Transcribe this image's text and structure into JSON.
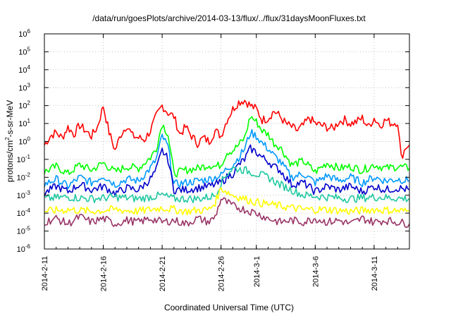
{
  "chart_data": {
    "type": "line",
    "title": "/data/run/goesPlots/archive/2014-03-13/flux/../flux/31daysMoonFluxes.txt",
    "xlabel": "Coordinated Universal Time (UTC)",
    "ylabel": {
      "base": "protons/cm",
      "sup": "2",
      "rest": "-s-sr-MeV"
    },
    "y_scale": "log",
    "ylim_exponent": [
      -6,
      6
    ],
    "y_ticks": [
      {
        "base": "10",
        "exp": "-6"
      },
      {
        "base": "10",
        "exp": "-5"
      },
      {
        "base": "10",
        "exp": "-4"
      },
      {
        "base": "10",
        "exp": "-3"
      },
      {
        "base": "10",
        "exp": "-2"
      },
      {
        "base": "10",
        "exp": "-1"
      },
      {
        "base": "10",
        "exp": "0"
      },
      {
        "base": "10",
        "exp": "1"
      },
      {
        "base": "10",
        "exp": "2"
      },
      {
        "base": "10",
        "exp": "3"
      },
      {
        "base": "10",
        "exp": "4"
      },
      {
        "base": "10",
        "exp": "5"
      },
      {
        "base": "10",
        "exp": "6"
      }
    ],
    "xlim_days": [
      0,
      31
    ],
    "x_ticks": [
      {
        "day": 0,
        "label": "2014-2-11"
      },
      {
        "day": 5,
        "label": "2014-2-16"
      },
      {
        "day": 10,
        "label": "2014-2-21"
      },
      {
        "day": 15,
        "label": "2014-2-26"
      },
      {
        "day": 18,
        "label": "2014-3-1"
      },
      {
        "day": 23,
        "label": "2014-3-6"
      },
      {
        "day": 28,
        "label": "2014-3-11"
      }
    ],
    "grid": true,
    "series": [
      {
        "color": "#ff0000",
        "log_values": [
          [
            0,
            -0.2
          ],
          [
            0.5,
            0.3
          ],
          [
            1,
            0.5
          ],
          [
            1.5,
            0.2
          ],
          [
            2,
            0.8
          ],
          [
            2.5,
            0.4
          ],
          [
            3,
            0.9
          ],
          [
            3.5,
            0.6
          ],
          [
            4,
            0.3
          ],
          [
            4.5,
            0.8
          ],
          [
            5,
            2.0
          ],
          [
            5.5,
            0.5
          ],
          [
            6,
            -0.5
          ],
          [
            6.5,
            0.4
          ],
          [
            7,
            0.9
          ],
          [
            7.5,
            0.3
          ],
          [
            8,
            0.2
          ],
          [
            8.5,
            0.1
          ],
          [
            9,
            0.6
          ],
          [
            9.5,
            1.4
          ],
          [
            10,
            2.0
          ],
          [
            10.5,
            1.6
          ],
          [
            11,
            1.4
          ],
          [
            11.5,
            0.4
          ],
          [
            12,
            0.8
          ],
          [
            12.5,
            0.3
          ],
          [
            13,
            -0.1
          ],
          [
            13.5,
            0.2
          ],
          [
            14,
            0.0
          ],
          [
            14.5,
            0.6
          ],
          [
            15,
            0.3
          ],
          [
            15.5,
            1.2
          ],
          [
            16,
            1.8
          ],
          [
            16.5,
            2.2
          ],
          [
            17,
            2.3
          ],
          [
            17.5,
            2.0
          ],
          [
            18,
            1.8
          ],
          [
            18.5,
            1.2
          ],
          [
            19,
            1.3
          ],
          [
            19.5,
            1.7
          ],
          [
            20,
            1.4
          ],
          [
            20.5,
            1.0
          ],
          [
            21,
            0.8
          ],
          [
            21.5,
            0.6
          ],
          [
            22,
            0.9
          ],
          [
            22.5,
            1.3
          ],
          [
            23,
            1.0
          ],
          [
            23.5,
            0.9
          ],
          [
            24,
            0.8
          ],
          [
            24.5,
            0.7
          ],
          [
            25,
            1.1
          ],
          [
            25.5,
            1.2
          ],
          [
            26,
            1.0
          ],
          [
            26.5,
            1.1
          ],
          [
            27,
            1.3
          ],
          [
            27.5,
            0.8
          ],
          [
            28,
            1.3
          ],
          [
            28.5,
            0.9
          ],
          [
            29,
            1.2
          ],
          [
            29.5,
            1.0
          ],
          [
            30,
            1.1
          ],
          [
            30.3,
            -0.9
          ],
          [
            30.7,
            -0.3
          ],
          [
            31,
            -0.2
          ]
        ]
      },
      {
        "color": "#00ff00",
        "log_values": [
          [
            0,
            -1.7
          ],
          [
            1,
            -1.4
          ],
          [
            2,
            -1.8
          ],
          [
            3,
            -1.3
          ],
          [
            4,
            -1.6
          ],
          [
            5,
            -1.2
          ],
          [
            6,
            -1.7
          ],
          [
            7,
            -1.4
          ],
          [
            8,
            -1.5
          ],
          [
            9,
            -0.9
          ],
          [
            9.5,
            -0.4
          ],
          [
            10,
            1.0
          ],
          [
            10.5,
            0.4
          ],
          [
            11,
            -1.8
          ],
          [
            12,
            -1.6
          ],
          [
            13,
            -1.5
          ],
          [
            14,
            -1.3
          ],
          [
            14.5,
            -1.4
          ],
          [
            15,
            -1.3
          ],
          [
            15.5,
            -0.6
          ],
          [
            16,
            -0.5
          ],
          [
            16.5,
            -0.2
          ],
          [
            17,
            0.2
          ],
          [
            17.5,
            1.4
          ],
          [
            18,
            1.1
          ],
          [
            18.5,
            0.6
          ],
          [
            19,
            0.4
          ],
          [
            19.5,
            -0.1
          ],
          [
            20,
            -0.3
          ],
          [
            21,
            -1.3
          ],
          [
            22,
            -1.1
          ],
          [
            23,
            -1.7
          ],
          [
            24,
            -1.2
          ],
          [
            25,
            -1.5
          ],
          [
            26,
            -1.4
          ],
          [
            27,
            -1.6
          ],
          [
            28,
            -1.3
          ],
          [
            29,
            -1.5
          ],
          [
            30,
            -1.4
          ],
          [
            31,
            -1.5
          ]
        ]
      },
      {
        "color": "#0099ff",
        "log_values": [
          [
            0,
            -2.4
          ],
          [
            1,
            -2.1
          ],
          [
            2,
            -2.5
          ],
          [
            3,
            -2.0
          ],
          [
            4,
            -2.3
          ],
          [
            5,
            -1.9
          ],
          [
            6,
            -2.4
          ],
          [
            7,
            -2.1
          ],
          [
            8,
            -2.2
          ],
          [
            9,
            -1.5
          ],
          [
            9.5,
            -1.0
          ],
          [
            10,
            0.3
          ],
          [
            10.5,
            -0.3
          ],
          [
            11,
            -2.4
          ],
          [
            12,
            -2.3
          ],
          [
            13,
            -2.2
          ],
          [
            14,
            -2.1
          ],
          [
            15,
            -1.9
          ],
          [
            15.5,
            -1.5
          ],
          [
            16,
            -1.3
          ],
          [
            16.5,
            -0.9
          ],
          [
            17,
            -0.4
          ],
          [
            17.5,
            0.5
          ],
          [
            18,
            0.3
          ],
          [
            18.5,
            -0.1
          ],
          [
            19,
            -0.4
          ],
          [
            19.5,
            -0.8
          ],
          [
            20,
            -1.1
          ],
          [
            21,
            -2.0
          ],
          [
            22,
            -1.8
          ],
          [
            23,
            -2.3
          ],
          [
            24,
            -1.9
          ],
          [
            25,
            -2.2
          ],
          [
            26,
            -2.0
          ],
          [
            27,
            -2.3
          ],
          [
            28,
            -2.0
          ],
          [
            29,
            -2.2
          ],
          [
            30,
            -2.1
          ],
          [
            31,
            -2.2
          ]
        ]
      },
      {
        "color": "#0000cc",
        "log_values": [
          [
            0,
            -2.9
          ],
          [
            1,
            -2.5
          ],
          [
            2,
            -2.8
          ],
          [
            3,
            -2.4
          ],
          [
            4,
            -2.7
          ],
          [
            5,
            -2.5
          ],
          [
            6,
            -2.9
          ],
          [
            7,
            -2.6
          ],
          [
            8,
            -2.7
          ],
          [
            9,
            -2.1
          ],
          [
            9.5,
            -1.6
          ],
          [
            10,
            -0.5
          ],
          [
            10.5,
            -1.0
          ],
          [
            11,
            -2.7
          ],
          [
            12,
            -2.7
          ],
          [
            13,
            -2.6
          ],
          [
            14,
            -2.5
          ],
          [
            15,
            -2.3
          ],
          [
            15.5,
            -2.0
          ],
          [
            16,
            -1.8
          ],
          [
            16.5,
            -1.3
          ],
          [
            17,
            -1.0
          ],
          [
            17.5,
            -0.4
          ],
          [
            18,
            -0.6
          ],
          [
            18.5,
            -0.9
          ],
          [
            19,
            -1.1
          ],
          [
            19.5,
            -1.4
          ],
          [
            20,
            -1.6
          ],
          [
            21,
            -2.4
          ],
          [
            22,
            -2.3
          ],
          [
            23,
            -2.8
          ],
          [
            24,
            -2.5
          ],
          [
            25,
            -2.7
          ],
          [
            26,
            -2.5
          ],
          [
            27,
            -2.8
          ],
          [
            28,
            -2.5
          ],
          [
            29,
            -2.7
          ],
          [
            30,
            -2.6
          ],
          [
            31,
            -2.7
          ]
        ]
      },
      {
        "color": "#1fc8a0",
        "log_values": [
          [
            0,
            -3.2
          ],
          [
            2,
            -3.1
          ],
          [
            4,
            -3.2
          ],
          [
            6,
            -3.1
          ],
          [
            8,
            -3.2
          ],
          [
            10,
            -3.0
          ],
          [
            11,
            -3.2
          ],
          [
            13,
            -3.2
          ],
          [
            14,
            -3.1
          ],
          [
            14.5,
            -3.0
          ],
          [
            15,
            -2.3
          ],
          [
            15.5,
            -1.8
          ],
          [
            16,
            -1.5
          ],
          [
            17,
            -1.6
          ],
          [
            18,
            -1.8
          ],
          [
            19,
            -2.0
          ],
          [
            20,
            -2.4
          ],
          [
            21,
            -2.7
          ],
          [
            22,
            -3.0
          ],
          [
            24,
            -3.1
          ],
          [
            26,
            -3.2
          ],
          [
            28,
            -3.1
          ],
          [
            31,
            -3.2
          ]
        ]
      },
      {
        "color": "#ffff00",
        "log_values": [
          [
            0,
            -3.9
          ],
          [
            2,
            -3.8
          ],
          [
            4,
            -3.9
          ],
          [
            6,
            -3.8
          ],
          [
            8,
            -3.9
          ],
          [
            10,
            -3.7
          ],
          [
            12,
            -3.9
          ],
          [
            14,
            -3.8
          ],
          [
            14.5,
            -3.4
          ],
          [
            15,
            -2.6
          ],
          [
            15.5,
            -2.8
          ],
          [
            16,
            -3.0
          ],
          [
            17,
            -3.2
          ],
          [
            18,
            -3.4
          ],
          [
            20,
            -3.6
          ],
          [
            22,
            -3.8
          ],
          [
            24,
            -3.8
          ],
          [
            26,
            -3.9
          ],
          [
            28,
            -3.8
          ],
          [
            31,
            -3.9
          ]
        ]
      },
      {
        "color": "#993366",
        "log_values": [
          [
            0,
            -4.5
          ],
          [
            1,
            -4.3
          ],
          [
            2,
            -4.6
          ],
          [
            3,
            -4.2
          ],
          [
            4,
            -4.5
          ],
          [
            5,
            -4.3
          ],
          [
            6,
            -4.6
          ],
          [
            7,
            -4.4
          ],
          [
            8,
            -4.5
          ],
          [
            9,
            -4.3
          ],
          [
            10,
            -4.5
          ],
          [
            11,
            -4.4
          ],
          [
            12,
            -4.6
          ],
          [
            13,
            -4.3
          ],
          [
            14,
            -4.5
          ],
          [
            14.5,
            -4.2
          ],
          [
            15,
            -3.2
          ],
          [
            15.5,
            -3.4
          ],
          [
            16,
            -3.6
          ],
          [
            17,
            -3.8
          ],
          [
            18,
            -4.0
          ],
          [
            19,
            -4.3
          ],
          [
            20,
            -4.5
          ],
          [
            21,
            -4.4
          ],
          [
            22,
            -4.5
          ],
          [
            23,
            -4.3
          ],
          [
            24,
            -4.5
          ],
          [
            25,
            -4.4
          ],
          [
            26,
            -4.6
          ],
          [
            27,
            -4.3
          ],
          [
            28,
            -4.5
          ],
          [
            29,
            -4.4
          ],
          [
            30,
            -4.5
          ],
          [
            31,
            -4.6
          ]
        ]
      }
    ]
  }
}
